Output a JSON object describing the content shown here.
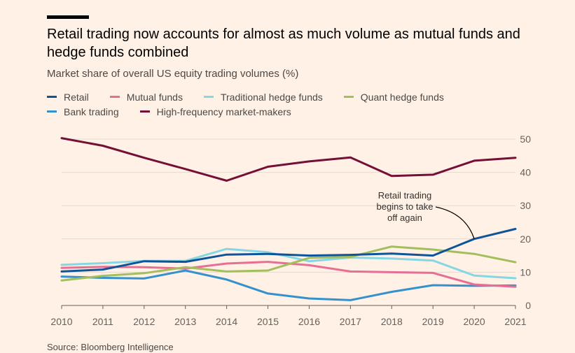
{
  "title": "Retail trading now accounts for almost as much volume as mutual funds and hedge funds combined",
  "subtitle": "Market share of overall US equity trading volumes (%)",
  "source": "Source: Bloomberg Intelligence",
  "chart_data": {
    "type": "line",
    "x": [
      2010,
      2011,
      2012,
      2013,
      2014,
      2015,
      2016,
      2017,
      2018,
      2019,
      2020,
      2021
    ],
    "ylim": [
      0,
      50
    ],
    "yticks": [
      0,
      10,
      20,
      30,
      40,
      50
    ],
    "grid": true,
    "legend_position": "top",
    "series": [
      {
        "name": "Retail",
        "color": "#0f5499",
        "values": [
          10.2,
          10.8,
          13.3,
          13.1,
          15.3,
          15.5,
          15.0,
          15.2,
          15.6,
          15.0,
          20.0,
          23.0
        ]
      },
      {
        "name": "Mutual funds",
        "color": "#e56f95",
        "values": [
          11.3,
          11.6,
          11.5,
          11.1,
          12.6,
          13.1,
          12.1,
          10.2,
          10.0,
          9.8,
          6.3,
          5.6
        ]
      },
      {
        "name": "Traditional hedge funds",
        "color": "#86d6e3",
        "values": [
          12.2,
          12.7,
          13.4,
          13.4,
          17.0,
          16.0,
          13.3,
          14.4,
          14.1,
          13.5,
          9.0,
          8.2
        ]
      },
      {
        "name": "Quant hedge funds",
        "color": "#a2bf5c",
        "values": [
          7.5,
          8.9,
          9.7,
          11.5,
          10.2,
          10.5,
          14.3,
          14.6,
          17.7,
          16.8,
          15.5,
          13.0
        ]
      },
      {
        "name": "Bank trading",
        "color": "#3591cd",
        "values": [
          8.7,
          8.3,
          8.1,
          10.5,
          7.8,
          3.6,
          2.1,
          1.6,
          4.1,
          6.1,
          5.9,
          6.0
        ]
      },
      {
        "name": "High-frequency market-makers",
        "color": "#740f35",
        "values": [
          50.3,
          48.0,
          44.4,
          41.0,
          37.5,
          41.7,
          43.3,
          44.5,
          38.9,
          39.3,
          43.5,
          44.4
        ]
      }
    ],
    "annotations": [
      {
        "lines": [
          "Retail trading",
          "begins to take",
          "off again"
        ],
        "x": 2020,
        "y": 20.0
      }
    ]
  }
}
